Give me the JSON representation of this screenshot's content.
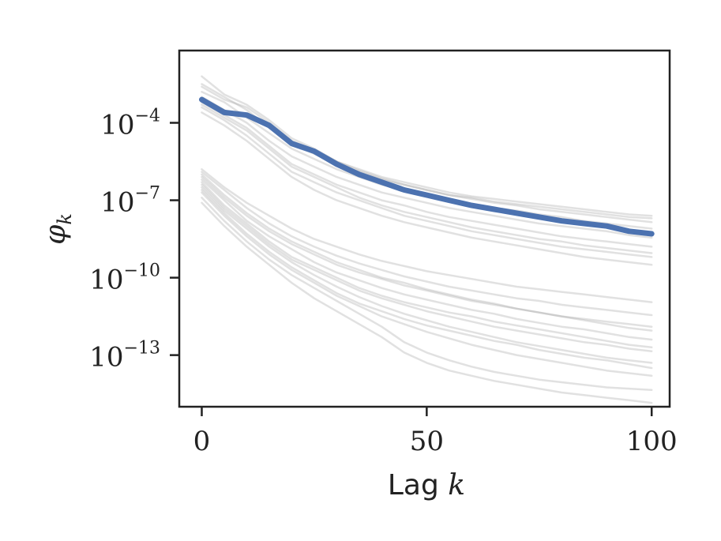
{
  "chart_data": {
    "type": "line",
    "title": "",
    "xlabel": {
      "text": "Lag ",
      "var": "k"
    },
    "ylabel": {
      "base": "φ",
      "sub": "k"
    },
    "xlim": [
      -5,
      104
    ],
    "ylim_log10": [
      -15.0,
      -1.2
    ],
    "yscale": "log",
    "grid": false,
    "legend": "none",
    "x_ticks": [
      {
        "value": 0,
        "label": "0"
      },
      {
        "value": 50,
        "label": "50"
      },
      {
        "value": 100,
        "label": "100"
      }
    ],
    "y_ticks": [
      {
        "exp": -4,
        "base": "10",
        "sup": "−4"
      },
      {
        "exp": -7,
        "base": "10",
        "sup": "−7"
      },
      {
        "exp": -10,
        "base": "10",
        "sup": "−10"
      },
      {
        "exp": -13,
        "base": "10",
        "sup": "−13"
      }
    ],
    "x": [
      0,
      5,
      10,
      15,
      20,
      25,
      30,
      35,
      40,
      45,
      50,
      55,
      60,
      65,
      70,
      75,
      80,
      85,
      90,
      95,
      100
    ],
    "series_log10": [
      {
        "role": "highlight",
        "color": "#4c72b0",
        "values": [
          -3.1,
          -3.6,
          -3.7,
          -4.1,
          -4.8,
          -5.1,
          -5.6,
          -6.0,
          -6.3,
          -6.6,
          -6.8,
          -7.0,
          -7.2,
          -7.35,
          -7.5,
          -7.65,
          -7.8,
          -7.9,
          -8.0,
          -8.2,
          -8.3
        ]
      },
      {
        "role": "ensemble",
        "color": "#aaaaaa",
        "values": [
          -2.2,
          -2.9,
          -3.3,
          -3.9,
          -4.6,
          -5.0,
          -5.5,
          -5.8,
          -6.1,
          -6.3,
          -6.5,
          -6.7,
          -6.85,
          -6.95,
          -7.05,
          -7.15,
          -7.25,
          -7.35,
          -7.45,
          -7.55,
          -7.6
        ]
      },
      {
        "role": "ensemble",
        "color": "#aaaaaa",
        "values": [
          -2.5,
          -3.0,
          -3.5,
          -4.2,
          -4.8,
          -5.2,
          -5.6,
          -5.9,
          -6.2,
          -6.4,
          -6.6,
          -6.8,
          -6.95,
          -7.1,
          -7.2,
          -7.35,
          -7.45,
          -7.55,
          -7.65,
          -7.75,
          -7.85
        ]
      },
      {
        "role": "ensemble",
        "color": "#aaaaaa",
        "values": [
          -2.8,
          -3.2,
          -3.8,
          -4.4,
          -5.0,
          -5.4,
          -5.8,
          -6.1,
          -6.4,
          -6.6,
          -6.8,
          -7.0,
          -7.15,
          -7.3,
          -7.4,
          -7.55,
          -7.65,
          -7.8,
          -7.9,
          -8.0,
          -8.1
        ]
      },
      {
        "role": "ensemble",
        "color": "#aaaaaa",
        "values": [
          -3.0,
          -3.5,
          -4.0,
          -4.7,
          -5.3,
          -5.7,
          -6.1,
          -6.4,
          -6.7,
          -6.9,
          -7.1,
          -7.3,
          -7.45,
          -7.6,
          -7.75,
          -7.9,
          -8.0,
          -8.1,
          -8.2,
          -8.35,
          -8.45
        ]
      },
      {
        "role": "ensemble",
        "color": "#aaaaaa",
        "values": [
          -3.2,
          -3.7,
          -4.2,
          -4.9,
          -5.6,
          -6.0,
          -6.4,
          -6.7,
          -7.0,
          -7.2,
          -7.45,
          -7.65,
          -7.8,
          -7.95,
          -8.1,
          -8.25,
          -8.4,
          -8.5,
          -8.6,
          -8.7,
          -8.8
        ]
      },
      {
        "role": "ensemble",
        "color": "#aaaaaa",
        "values": [
          -3.4,
          -3.9,
          -4.5,
          -5.2,
          -5.9,
          -6.3,
          -6.7,
          -7.0,
          -7.3,
          -7.6,
          -7.8,
          -8.0,
          -8.2,
          -8.35,
          -8.5,
          -8.65,
          -8.8,
          -8.9,
          -9.0,
          -9.1,
          -9.2
        ]
      },
      {
        "role": "ensemble",
        "color": "#aaaaaa",
        "values": [
          -3.6,
          -4.1,
          -4.7,
          -5.4,
          -6.1,
          -6.6,
          -7.0,
          -7.3,
          -7.6,
          -7.85,
          -8.05,
          -8.25,
          -8.45,
          -8.6,
          -8.75,
          -8.9,
          -9.05,
          -9.2,
          -9.3,
          -9.4,
          -9.5
        ]
      },
      {
        "role": "ensemble",
        "color": "#aaaaaa",
        "values": [
          -2.6,
          -3.1,
          -3.4,
          -4.0,
          -4.7,
          -5.05,
          -5.5,
          -5.85,
          -6.15,
          -6.4,
          -6.6,
          -6.8,
          -6.9,
          -7.05,
          -7.15,
          -7.25,
          -7.35,
          -7.45,
          -7.55,
          -7.65,
          -7.7
        ]
      },
      {
        "role": "ensemble",
        "color": "#aaaaaa",
        "values": [
          -3.3,
          -3.8,
          -4.3,
          -5.0,
          -5.7,
          -6.1,
          -6.5,
          -6.9,
          -7.2,
          -7.45,
          -7.65,
          -7.85,
          -8.05,
          -8.2,
          -8.35,
          -8.5,
          -8.6,
          -8.75,
          -8.85,
          -8.95,
          -9.05
        ]
      },
      {
        "role": "ensemble",
        "color": "#aaaaaa",
        "values": [
          -5.8,
          -6.5,
          -7.1,
          -7.6,
          -8.1,
          -8.5,
          -8.8,
          -9.1,
          -9.35,
          -9.55,
          -9.75,
          -9.9,
          -10.05,
          -10.2,
          -10.35,
          -10.45,
          -10.55,
          -10.65,
          -10.75,
          -10.85,
          -10.95
        ]
      },
      {
        "role": "ensemble",
        "color": "#aaaaaa",
        "values": [
          -6.0,
          -6.8,
          -7.5,
          -8.1,
          -8.6,
          -9.0,
          -9.4,
          -9.7,
          -10.0,
          -10.2,
          -10.45,
          -10.65,
          -10.85,
          -11.0,
          -11.2,
          -11.35,
          -11.5,
          -11.65,
          -11.8,
          -11.95,
          -12.05
        ]
      },
      {
        "role": "ensemble",
        "color": "#aaaaaa",
        "values": [
          -6.2,
          -7.0,
          -7.8,
          -8.4,
          -8.9,
          -9.4,
          -9.8,
          -10.1,
          -10.4,
          -10.65,
          -10.85,
          -11.05,
          -11.25,
          -11.4,
          -11.6,
          -11.75,
          -11.9,
          -12.0,
          -12.15,
          -12.3,
          -12.4
        ]
      },
      {
        "role": "ensemble",
        "color": "#aaaaaa",
        "values": [
          -6.4,
          -7.3,
          -8.0,
          -8.7,
          -9.3,
          -9.7,
          -10.1,
          -10.5,
          -10.8,
          -11.05,
          -11.3,
          -11.5,
          -11.7,
          -11.9,
          -12.05,
          -12.2,
          -12.35,
          -12.5,
          -12.6,
          -12.75,
          -12.85
        ]
      },
      {
        "role": "ensemble",
        "color": "#aaaaaa",
        "values": [
          -6.6,
          -7.5,
          -8.3,
          -9.0,
          -9.6,
          -10.1,
          -10.6,
          -11.0,
          -11.3,
          -11.6,
          -11.85,
          -12.05,
          -12.25,
          -12.45,
          -12.6,
          -12.8,
          -12.95,
          -13.1,
          -13.2,
          -13.35,
          -13.5
        ]
      },
      {
        "role": "ensemble",
        "color": "#aaaaaa",
        "values": [
          -6.9,
          -7.8,
          -8.6,
          -9.3,
          -9.9,
          -10.4,
          -10.9,
          -11.4,
          -11.9,
          -12.5,
          -12.9,
          -13.2,
          -13.45,
          -13.65,
          -13.8,
          -13.95,
          -14.05,
          -14.15,
          -14.25,
          -14.3,
          -14.35
        ]
      },
      {
        "role": "ensemble",
        "color": "#aaaaaa",
        "values": [
          -7.1,
          -8.0,
          -8.8,
          -9.5,
          -10.2,
          -10.8,
          -11.3,
          -11.8,
          -12.3,
          -12.9,
          -13.3,
          -13.6,
          -13.8,
          -14.0,
          -14.15,
          -14.3,
          -14.45,
          -14.55,
          -14.65,
          -14.75,
          -14.85
        ]
      },
      {
        "role": "ensemble",
        "color": "#aaaaaa",
        "values": [
          -6.1,
          -6.9,
          -7.6,
          -8.2,
          -8.7,
          -9.1,
          -9.5,
          -9.8,
          -10.05,
          -10.3,
          -10.5,
          -10.7,
          -10.9,
          -11.05,
          -11.2,
          -11.35,
          -11.5,
          -11.6,
          -11.7,
          -11.8,
          -11.9
        ]
      },
      {
        "role": "ensemble",
        "color": "#aaaaaa",
        "values": [
          -6.3,
          -7.2,
          -7.9,
          -8.6,
          -9.2,
          -9.6,
          -10.0,
          -10.4,
          -10.7,
          -10.95,
          -11.15,
          -11.35,
          -11.5,
          -11.7,
          -11.85,
          -12.0,
          -12.15,
          -12.3,
          -12.45,
          -12.6,
          -12.7
        ]
      },
      {
        "role": "ensemble",
        "color": "#aaaaaa",
        "values": [
          -6.7,
          -7.6,
          -8.4,
          -9.1,
          -9.7,
          -10.2,
          -10.7,
          -11.1,
          -11.5,
          -11.8,
          -12.1,
          -12.35,
          -12.6,
          -12.8,
          -13.0,
          -13.15,
          -13.3,
          -13.45,
          -13.6,
          -13.7,
          -13.8
        ]
      },
      {
        "role": "ensemble",
        "color": "#aaaaaa",
        "values": [
          -5.9,
          -6.6,
          -7.3,
          -7.9,
          -8.4,
          -8.8,
          -9.15,
          -9.45,
          -9.7,
          -9.95,
          -10.15,
          -10.35,
          -10.5,
          -10.65,
          -10.8,
          -10.9,
          -11.05,
          -11.15,
          -11.25,
          -11.35,
          -11.45
        ]
      },
      {
        "role": "ensemble",
        "color": "#aaaaaa",
        "values": [
          -6.5,
          -7.4,
          -8.1,
          -8.8,
          -9.4,
          -9.9,
          -10.35,
          -10.75,
          -11.1,
          -11.4,
          -11.65,
          -11.9,
          -12.1,
          -12.3,
          -12.5,
          -12.65,
          -12.8,
          -12.95,
          -13.1,
          -13.2,
          -13.3
        ]
      }
    ]
  }
}
